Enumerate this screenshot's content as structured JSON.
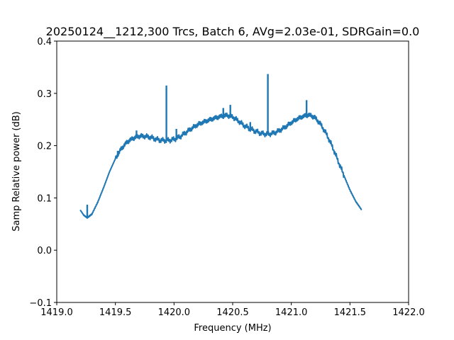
{
  "chart_data": {
    "type": "line",
    "title": "20250124__1212,300 Trcs, Batch 6, AVg=2.03e-01, SDRGain=0.0",
    "xlabel": "Frequency (MHz)",
    "ylabel": "Samp Relative power (dB)",
    "xlim": [
      1419.0,
      1422.0
    ],
    "ylim": [
      -0.1,
      0.4
    ],
    "xticks": [
      "1419.0",
      "1419.5",
      "1420.0",
      "1420.5",
      "1421.0",
      "1421.5",
      "1422.0"
    ],
    "yticks": [
      "−0.1",
      "0.0",
      "0.1",
      "0.2",
      "0.3",
      "0.4"
    ],
    "grid": false,
    "series": [
      {
        "color": "#1f77b4",
        "x": [
          1419.2,
          1419.23,
          1419.26,
          1419.3,
          1419.35,
          1419.4,
          1419.45,
          1419.5,
          1419.55,
          1419.6,
          1419.65,
          1419.7,
          1419.75,
          1419.8,
          1419.85,
          1419.9,
          1419.95,
          1420.0,
          1420.05,
          1420.1,
          1420.15,
          1420.2,
          1420.25,
          1420.3,
          1420.35,
          1420.4,
          1420.45,
          1420.5,
          1420.55,
          1420.6,
          1420.65,
          1420.7,
          1420.75,
          1420.8,
          1420.85,
          1420.9,
          1420.95,
          1421.0,
          1421.05,
          1421.1,
          1421.15,
          1421.2,
          1421.25,
          1421.3,
          1421.35,
          1421.4,
          1421.45,
          1421.5,
          1421.55,
          1421.6
        ],
        "y": [
          0.077,
          0.067,
          0.062,
          0.069,
          0.092,
          0.12,
          0.15,
          0.175,
          0.194,
          0.207,
          0.214,
          0.218,
          0.218,
          0.216,
          0.212,
          0.21,
          0.21,
          0.212,
          0.217,
          0.225,
          0.233,
          0.24,
          0.245,
          0.249,
          0.253,
          0.256,
          0.258,
          0.255,
          0.247,
          0.238,
          0.232,
          0.227,
          0.223,
          0.222,
          0.224,
          0.229,
          0.236,
          0.244,
          0.251,
          0.256,
          0.259,
          0.254,
          0.241,
          0.222,
          0.198,
          0.17,
          0.142,
          0.115,
          0.093,
          0.077
        ]
      }
    ],
    "spikes": [
      {
        "x": 1419.26,
        "y": 0.087
      },
      {
        "x": 1419.52,
        "y": 0.19
      },
      {
        "x": 1419.68,
        "y": 0.229
      },
      {
        "x": 1419.935,
        "y": 0.315
      },
      {
        "x": 1420.02,
        "y": 0.232
      },
      {
        "x": 1420.12,
        "y": 0.232
      },
      {
        "x": 1420.42,
        "y": 0.272
      },
      {
        "x": 1420.48,
        "y": 0.278
      },
      {
        "x": 1420.65,
        "y": 0.245
      },
      {
        "x": 1420.8,
        "y": 0.337
      },
      {
        "x": 1421.13,
        "y": 0.287
      }
    ]
  }
}
